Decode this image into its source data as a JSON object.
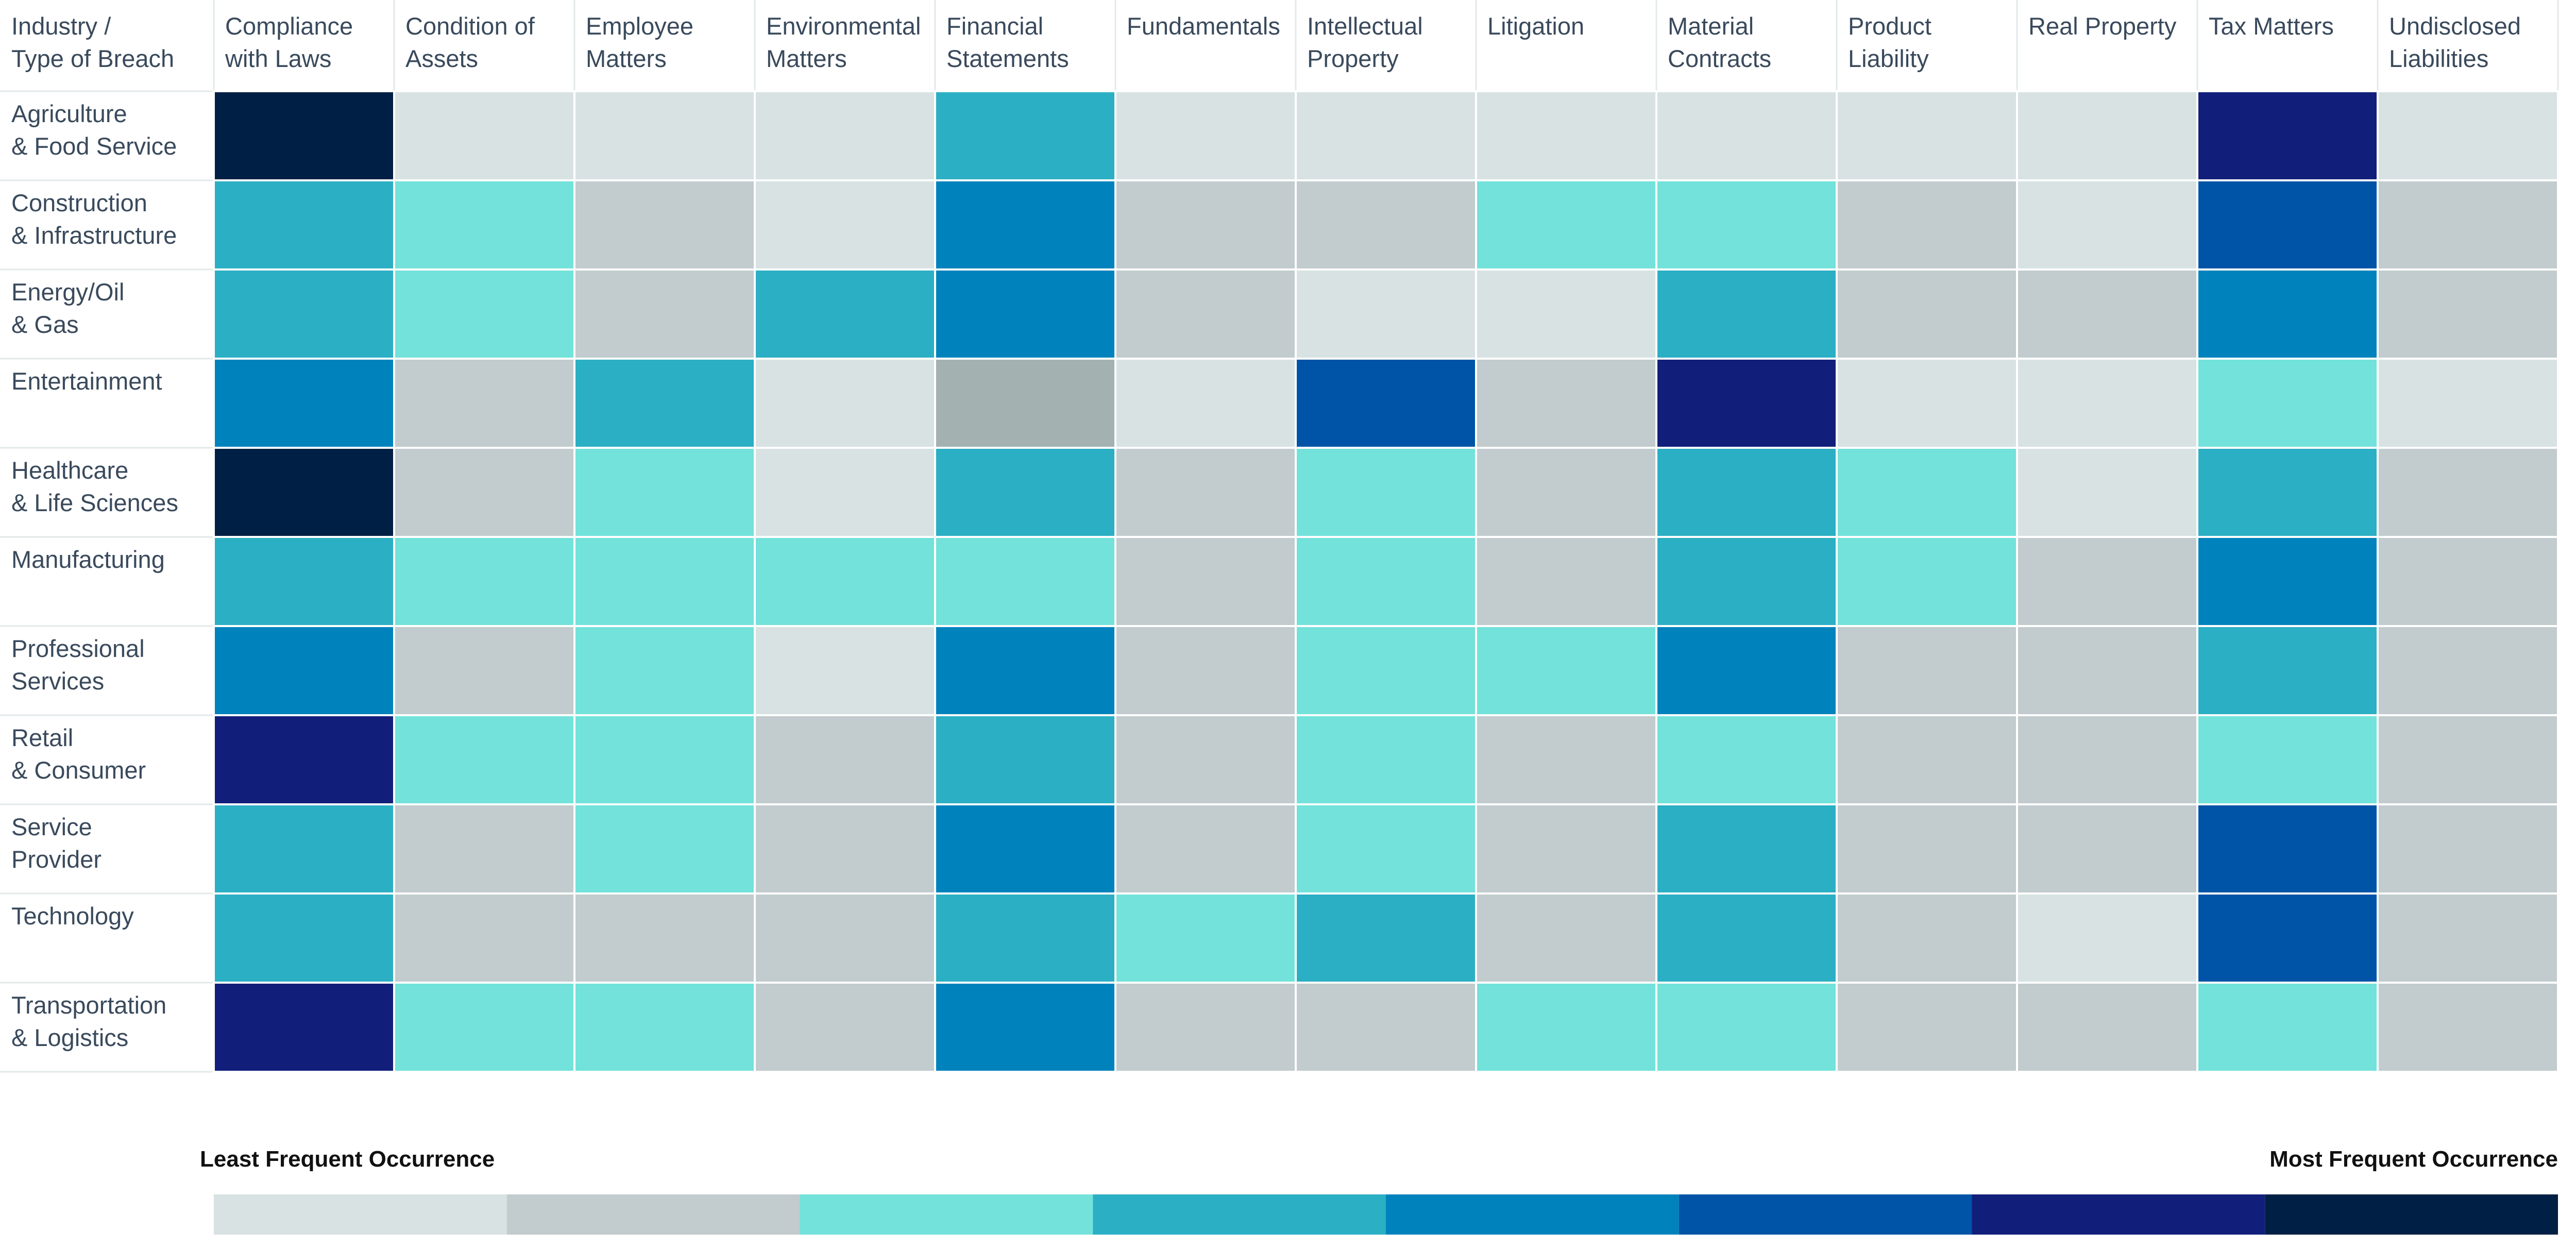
{
  "chart_data": {
    "type": "heatmap",
    "corner_label": [
      "Industry /",
      "Type of Breach"
    ],
    "columns": [
      [
        "Compliance",
        "with Laws"
      ],
      [
        "Condition of",
        "Assets"
      ],
      [
        "Employee",
        "Matters"
      ],
      [
        "Environmental",
        "Matters"
      ],
      [
        "Financial",
        "Statements"
      ],
      [
        "Fundamentals"
      ],
      [
        "Intellectual",
        "Property"
      ],
      [
        "Litigation"
      ],
      [
        "Material",
        "Contracts"
      ],
      [
        "Product",
        "Liability"
      ],
      [
        "Real Property"
      ],
      [
        "Tax Matters"
      ],
      [
        "Undisclosed",
        "Liabilities"
      ]
    ],
    "rows": [
      [
        "Agriculture",
        "& Food Service"
      ],
      [
        "Construction",
        "& Infrastructure"
      ],
      [
        "Energy/Oil",
        "& Gas"
      ],
      [
        "Entertainment"
      ],
      [
        "Healthcare",
        "& Life Sciences"
      ],
      [
        "Manufacturing"
      ],
      [
        "Professional",
        "Services"
      ],
      [
        "Retail",
        "& Consumer"
      ],
      [
        "Service",
        "Provider"
      ],
      [
        "Technology"
      ],
      [
        "Transportation",
        "& Logistics"
      ]
    ],
    "values": [
      [
        8,
        1,
        1,
        1,
        4,
        1,
        1,
        1,
        1,
        1,
        1,
        7,
        1
      ],
      [
        4,
        3,
        2,
        1,
        5,
        2,
        2,
        3,
        3,
        2,
        1,
        6,
        2
      ],
      [
        4,
        3,
        2,
        4,
        5,
        2,
        1,
        1,
        4,
        2,
        2,
        5,
        2
      ],
      [
        5,
        2,
        4,
        1,
        0,
        1,
        6,
        2,
        7,
        1,
        1,
        3,
        1
      ],
      [
        8,
        2,
        3,
        1,
        4,
        2,
        3,
        2,
        4,
        3,
        1,
        4,
        2
      ],
      [
        4,
        3,
        3,
        3,
        3,
        2,
        3,
        2,
        4,
        3,
        2,
        5,
        2
      ],
      [
        5,
        2,
        3,
        1,
        5,
        2,
        3,
        3,
        5,
        2,
        2,
        4,
        2
      ],
      [
        7,
        3,
        3,
        2,
        4,
        2,
        3,
        2,
        3,
        2,
        2,
        3,
        2
      ],
      [
        4,
        2,
        3,
        2,
        5,
        2,
        3,
        2,
        4,
        2,
        2,
        6,
        2
      ],
      [
        4,
        2,
        2,
        2,
        4,
        3,
        4,
        2,
        4,
        2,
        1,
        6,
        2
      ],
      [
        7,
        3,
        3,
        2,
        5,
        2,
        2,
        3,
        3,
        2,
        2,
        3,
        2
      ]
    ],
    "value_scale": "frequency level 1 (least) to 8 (most); 0 = outlier grey cell",
    "color_scale": [
      "#a3b1b1",
      "#d8e2e3",
      "#c2cbcd",
      "#72e2da",
      "#2bafc4",
      "#0083bd",
      "#0054a7",
      "#111f7a",
      "#001f44"
    ],
    "legend": {
      "min_label": "Least Frequent Occurrence",
      "max_label": "Most Frequent Occurrence",
      "levels": [
        1,
        2,
        3,
        4,
        5,
        6,
        7,
        8
      ]
    },
    "text_color": "#3a4a5c"
  }
}
